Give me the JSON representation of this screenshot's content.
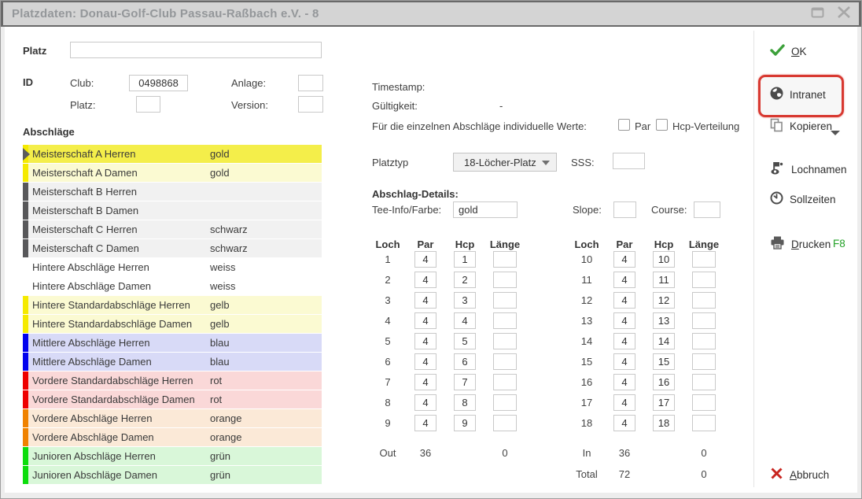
{
  "window": {
    "title": "Platzdaten: Donau-Golf-Club Passau-Raßbach e.V. - 8"
  },
  "form": {
    "platz_label": "Platz",
    "platz_value": "",
    "id_label": "ID",
    "club_label": "Club:",
    "club_value": "0498868",
    "platz2_label": "Platz:",
    "platz2_value": "",
    "anlage_label": "Anlage:",
    "anlage_value": "",
    "version_label": "Version:",
    "version_value": "",
    "timestamp_label": "Timestamp:",
    "timestamp_value": "",
    "gueltigkeit_label": "Gültigkeit:",
    "gueltigkeit_value": "-",
    "werte_label": "Für die einzelnen Abschläge individuelle Werte:",
    "par_checkbox_label": "Par",
    "hcp_checkbox_label": "Hcp-Verteilung",
    "platztyp_label": "Platztyp",
    "platztyp_value": "18-Löcher-Platz",
    "sss_label": "SSS:",
    "sss_value": "",
    "details_label": "Abschlag-Details:",
    "tee_info_label": "Tee-Info/Farbe:",
    "tee_info_value": "gold",
    "slope_label": "Slope:",
    "slope_value": "",
    "course_label": "Course:",
    "course_value": ""
  },
  "abschlaege": {
    "label": "Abschläge",
    "items": [
      {
        "name": "Meisterschaft A Herren",
        "farbe": "gold",
        "bg": "#f4ee4a",
        "bar": "#f5ea00",
        "selected": true
      },
      {
        "name": "Meisterschaft A Damen",
        "farbe": "gold",
        "bg": "#fbfad2",
        "bar": "#f5ea00",
        "selected": false
      },
      {
        "name": "Meisterschaft B Herren",
        "farbe": "",
        "bg": "#f1f1f1",
        "bar": "#58585a",
        "selected": false
      },
      {
        "name": "Meisterschaft B Damen",
        "farbe": "",
        "bg": "#f1f1f1",
        "bar": "#58585a",
        "selected": false
      },
      {
        "name": "Meisterschaft C Herren",
        "farbe": "schwarz",
        "bg": "#f1f1f1",
        "bar": "#58585a",
        "selected": false
      },
      {
        "name": "Meisterschaft C Damen",
        "farbe": "schwarz",
        "bg": "#f1f1f1",
        "bar": "#58585a",
        "selected": false
      },
      {
        "name": "Hintere Abschläge Herren",
        "farbe": "weiss",
        "bg": "#ffffff",
        "bar": "#ffffff",
        "selected": false
      },
      {
        "name": "Hintere Abschläge Damen",
        "farbe": "weiss",
        "bg": "#ffffff",
        "bar": "#ffffff",
        "selected": false
      },
      {
        "name": "Hintere Standardabschläge Herren",
        "farbe": "gelb",
        "bg": "#fbfad2",
        "bar": "#f5ea00",
        "selected": false
      },
      {
        "name": "Hintere Standardabschläge Damen",
        "farbe": "gelb",
        "bg": "#fbfad2",
        "bar": "#f5ea00",
        "selected": false
      },
      {
        "name": "Mittlere Abschläge Herren",
        "farbe": "blau",
        "bg": "#d8daf7",
        "bar": "#0202ee",
        "selected": false
      },
      {
        "name": "Mittlere Abschläge Damen",
        "farbe": "blau",
        "bg": "#d8daf7",
        "bar": "#0202ee",
        "selected": false
      },
      {
        "name": "Vordere Standardabschläge Herren",
        "farbe": "rot",
        "bg": "#fad8d8",
        "bar": "#ee0000",
        "selected": false
      },
      {
        "name": "Vordere Standardabschläge Damen",
        "farbe": "rot",
        "bg": "#fad8d8",
        "bar": "#ee0000",
        "selected": false
      },
      {
        "name": "Vordere Abschläge Herren",
        "farbe": "orange",
        "bg": "#fbe9d7",
        "bar": "#f08200",
        "selected": false
      },
      {
        "name": "Vordere Abschläge Damen",
        "farbe": "orange",
        "bg": "#fbe9d7",
        "bar": "#f08200",
        "selected": false
      },
      {
        "name": "Junioren Abschläge Herren",
        "farbe": "grün",
        "bg": "#d9f7d9",
        "bar": "#0cdd0c",
        "selected": false
      },
      {
        "name": "Junioren Abschläge Damen",
        "farbe": "grün",
        "bg": "#d9f7d9",
        "bar": "#0cdd0c",
        "selected": false
      }
    ]
  },
  "holes": {
    "headers": [
      "Loch",
      "Par",
      "Hcp",
      "Länge"
    ],
    "front": [
      {
        "loch": "1",
        "par": "4",
        "hcp": "1",
        "laenge": ""
      },
      {
        "loch": "2",
        "par": "4",
        "hcp": "2",
        "laenge": ""
      },
      {
        "loch": "3",
        "par": "4",
        "hcp": "3",
        "laenge": ""
      },
      {
        "loch": "4",
        "par": "4",
        "hcp": "4",
        "laenge": ""
      },
      {
        "loch": "5",
        "par": "4",
        "hcp": "5",
        "laenge": ""
      },
      {
        "loch": "6",
        "par": "4",
        "hcp": "6",
        "laenge": ""
      },
      {
        "loch": "7",
        "par": "4",
        "hcp": "7",
        "laenge": ""
      },
      {
        "loch": "8",
        "par": "4",
        "hcp": "8",
        "laenge": ""
      },
      {
        "loch": "9",
        "par": "4",
        "hcp": "9",
        "laenge": ""
      }
    ],
    "back": [
      {
        "loch": "10",
        "par": "4",
        "hcp": "10",
        "laenge": ""
      },
      {
        "loch": "11",
        "par": "4",
        "hcp": "11",
        "laenge": ""
      },
      {
        "loch": "12",
        "par": "4",
        "hcp": "12",
        "laenge": ""
      },
      {
        "loch": "13",
        "par": "4",
        "hcp": "13",
        "laenge": ""
      },
      {
        "loch": "14",
        "par": "4",
        "hcp": "14",
        "laenge": ""
      },
      {
        "loch": "15",
        "par": "4",
        "hcp": "15",
        "laenge": ""
      },
      {
        "loch": "16",
        "par": "4",
        "hcp": "16",
        "laenge": ""
      },
      {
        "loch": "17",
        "par": "4",
        "hcp": "17",
        "laenge": ""
      },
      {
        "loch": "18",
        "par": "4",
        "hcp": "18",
        "laenge": ""
      }
    ],
    "out": {
      "label": "Out",
      "par": "36",
      "laenge": "0"
    },
    "in": {
      "label": "In",
      "par": "36",
      "laenge": "0"
    },
    "total": {
      "label": "Total",
      "par": "72",
      "laenge": "0"
    }
  },
  "sidebar": {
    "ok_label": "OK",
    "intranet_label": "Intranet",
    "kopieren_label": "Kopieren",
    "lochnamen_label": "Lochnamen",
    "sollzeiten_label": "Sollzeiten",
    "drucken_label": "Drucken",
    "drucken_shortcut": "F8",
    "abbruch_label": "Abbruch"
  },
  "colors": {
    "ok_green": "#3ca03a",
    "shortcut_green": "#23a127",
    "cancel_red": "#c8251f",
    "annotation_red": "#d83931",
    "titlebar_bg": "#d4d4d4",
    "frame_dark": "#696969"
  }
}
